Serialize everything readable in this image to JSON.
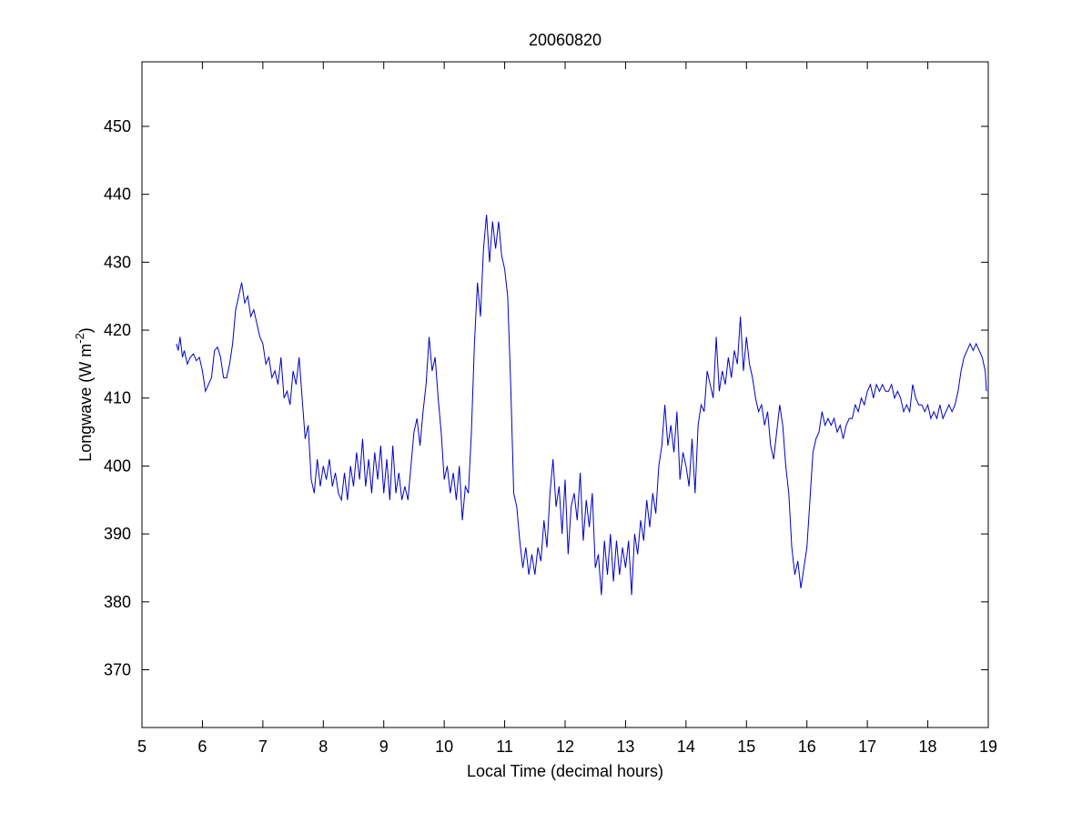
{
  "chart_data": {
    "type": "line",
    "title": "20060820",
    "xlabel": "Local Time (decimal hours)",
    "ylabel_parts": [
      "Longwave (W m",
      "-2",
      ")"
    ],
    "xlim": [
      5,
      19
    ],
    "xticks": [
      5,
      6,
      7,
      8,
      9,
      10,
      11,
      12,
      13,
      14,
      15,
      16,
      17,
      18,
      19
    ],
    "ylim": [
      361.5,
      459.5
    ],
    "yticks": [
      370,
      380,
      390,
      400,
      410,
      420,
      430,
      440,
      450
    ],
    "grid": false,
    "series": [
      {
        "color": "#0000c8",
        "x": [
          5.57,
          5.6,
          5.63,
          5.67,
          5.7,
          5.75,
          5.8,
          5.85,
          5.9,
          5.95,
          6.0,
          6.05,
          6.1,
          6.15,
          6.2,
          6.25,
          6.3,
          6.35,
          6.4,
          6.45,
          6.5,
          6.55,
          6.6,
          6.65,
          6.7,
          6.75,
          6.8,
          6.85,
          6.9,
          6.95,
          7.0,
          7.05,
          7.1,
          7.15,
          7.2,
          7.25,
          7.3,
          7.35,
          7.4,
          7.45,
          7.5,
          7.55,
          7.6,
          7.65,
          7.7,
          7.75,
          7.8,
          7.85,
          7.9,
          7.95,
          8.0,
          8.05,
          8.1,
          8.15,
          8.2,
          8.25,
          8.3,
          8.35,
          8.4,
          8.45,
          8.5,
          8.55,
          8.6,
          8.65,
          8.7,
          8.75,
          8.8,
          8.85,
          8.9,
          8.95,
          9.0,
          9.05,
          9.1,
          9.15,
          9.2,
          9.25,
          9.3,
          9.35,
          9.4,
          9.45,
          9.5,
          9.55,
          9.6,
          9.65,
          9.7,
          9.75,
          9.8,
          9.85,
          9.9,
          9.95,
          10.0,
          10.05,
          10.1,
          10.15,
          10.2,
          10.25,
          10.3,
          10.35,
          10.4,
          10.45,
          10.5,
          10.55,
          10.6,
          10.65,
          10.7,
          10.75,
          10.8,
          10.85,
          10.9,
          10.95,
          11.0,
          11.05,
          11.1,
          11.15,
          11.2,
          11.25,
          11.3,
          11.35,
          11.4,
          11.45,
          11.5,
          11.55,
          11.6,
          11.65,
          11.7,
          11.75,
          11.8,
          11.85,
          11.9,
          11.95,
          12.0,
          12.05,
          12.1,
          12.15,
          12.2,
          12.25,
          12.3,
          12.35,
          12.4,
          12.45,
          12.5,
          12.55,
          12.6,
          12.65,
          12.7,
          12.75,
          12.8,
          12.85,
          12.9,
          12.95,
          13.0,
          13.05,
          13.1,
          13.15,
          13.2,
          13.25,
          13.3,
          13.35,
          13.4,
          13.45,
          13.5,
          13.55,
          13.6,
          13.65,
          13.7,
          13.75,
          13.8,
          13.85,
          13.9,
          13.95,
          14.0,
          14.05,
          14.1,
          14.15,
          14.2,
          14.25,
          14.3,
          14.35,
          14.4,
          14.45,
          14.5,
          14.55,
          14.6,
          14.65,
          14.7,
          14.75,
          14.8,
          14.85,
          14.9,
          14.95,
          15.0,
          15.05,
          15.1,
          15.15,
          15.2,
          15.25,
          15.3,
          15.35,
          15.4,
          15.45,
          15.5,
          15.55,
          15.6,
          15.65,
          15.7,
          15.75,
          15.8,
          15.85,
          15.9,
          15.95,
          16.0,
          16.05,
          16.1,
          16.15,
          16.2,
          16.25,
          16.3,
          16.35,
          16.4,
          16.45,
          16.5,
          16.55,
          16.6,
          16.65,
          16.7,
          16.75,
          16.8,
          16.85,
          16.9,
          16.95,
          17.0,
          17.05,
          17.1,
          17.15,
          17.2,
          17.25,
          17.3,
          17.35,
          17.4,
          17.45,
          17.5,
          17.55,
          17.6,
          17.65,
          17.7,
          17.75,
          17.8,
          17.85,
          17.9,
          17.95,
          18.0,
          18.05,
          18.1,
          18.15,
          18.2,
          18.25,
          18.3,
          18.35,
          18.4,
          18.45,
          18.5,
          18.55,
          18.6,
          18.65,
          18.7,
          18.75,
          18.8,
          18.85,
          18.9,
          18.95,
          18.97
        ],
        "values": [
          418,
          417,
          419,
          416,
          417,
          415,
          416,
          416.5,
          415.5,
          416,
          414,
          411,
          412,
          413,
          417,
          417.5,
          416,
          413,
          413,
          415,
          418,
          423,
          425,
          427,
          424,
          425,
          422,
          423,
          421,
          419,
          418,
          415,
          416,
          413,
          414,
          412,
          416,
          410,
          411,
          409,
          414,
          412,
          416,
          410,
          404,
          406,
          398,
          396,
          401,
          397,
          400,
          398,
          401,
          397,
          399,
          396,
          395,
          399,
          395,
          400,
          397,
          402,
          398,
          404,
          397,
          401,
          396,
          402,
          398,
          403,
          396,
          401,
          395,
          403,
          396,
          399,
          395,
          397,
          395,
          400,
          405,
          407,
          403,
          408,
          412,
          419,
          414,
          416,
          410,
          405,
          398,
          400,
          396,
          399,
          395,
          400,
          392,
          397,
          396,
          405,
          418,
          427,
          422,
          432,
          437,
          430,
          436,
          432,
          436,
          431,
          429,
          425,
          412,
          396,
          394,
          389,
          385,
          388,
          384,
          387,
          384,
          388,
          386,
          392,
          388,
          396,
          401,
          394,
          397,
          390,
          398,
          387,
          394,
          396,
          392,
          399,
          389,
          395,
          391,
          396,
          385,
          387,
          381,
          389,
          384,
          390,
          383,
          389,
          384,
          388,
          385,
          389,
          381,
          390,
          387,
          392,
          389,
          395,
          391,
          396,
          393,
          400,
          403,
          409,
          403,
          406,
          402,
          408,
          398,
          402,
          400,
          397,
          404,
          396,
          406,
          409,
          408,
          414,
          412,
          410,
          419,
          411,
          414,
          412,
          416,
          413,
          417,
          415,
          422,
          414,
          419,
          415,
          413,
          410,
          408,
          409,
          406,
          408,
          403,
          401,
          405,
          409,
          406,
          400,
          396,
          388,
          384,
          386,
          382,
          385,
          388,
          395,
          402,
          404,
          405,
          408,
          406,
          407,
          406,
          407,
          405,
          406,
          404,
          406,
          407,
          407,
          409,
          408,
          410,
          409,
          411,
          412,
          410,
          412,
          411,
          412,
          411,
          411,
          412,
          410,
          411,
          410,
          408,
          409,
          408,
          412,
          410,
          409,
          409,
          408,
          409,
          407,
          408,
          407,
          409,
          407,
          408,
          409,
          408,
          409,
          411,
          414,
          416,
          417,
          418,
          417,
          418,
          417,
          416,
          414,
          411
        ]
      }
    ]
  }
}
